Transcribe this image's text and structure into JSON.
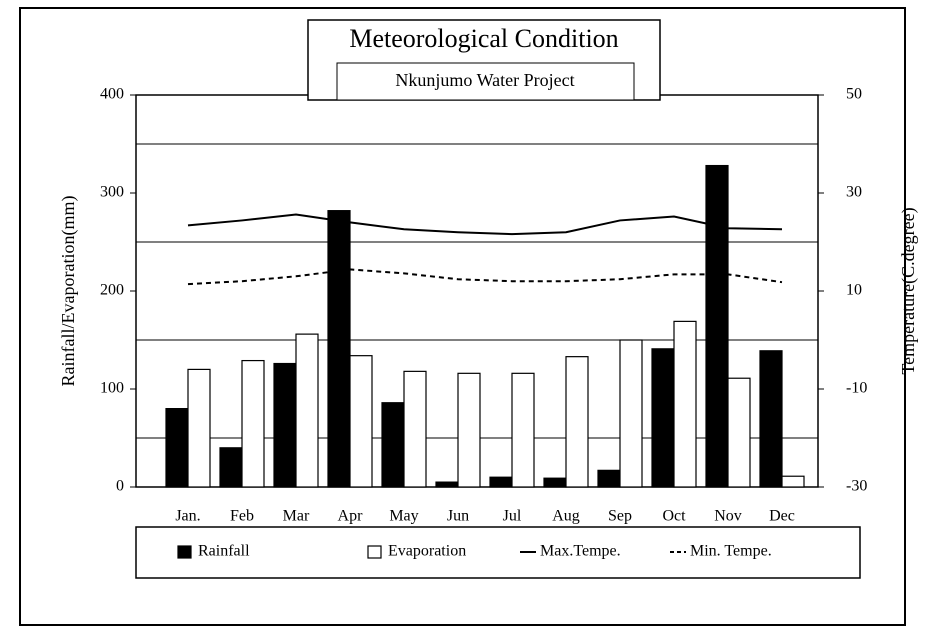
{
  "chart_data": {
    "type": "bar_line",
    "title": "Meteorological Condition",
    "subtitle": "Nkunjumo Water Project",
    "ylabel": "Rainfall/Evaporation(mm)",
    "y2label": "Temperature(C.degree)",
    "categories": [
      "Jan.",
      "Feb",
      "Mar",
      "Apr",
      "May",
      "Jun",
      "Jul",
      "Aug",
      "Sep",
      "Oct",
      "Nov",
      "Dec"
    ],
    "series": [
      {
        "name": "Rainfall",
        "type": "bar",
        "color": "#000000",
        "values": [
          80,
          40,
          126,
          282,
          86,
          5,
          10,
          9,
          17,
          141,
          328,
          139
        ]
      },
      {
        "name": "Evaporation",
        "type": "bar",
        "color": "#ffffff",
        "values": [
          120,
          129,
          156,
          134,
          118,
          116,
          116,
          133,
          150,
          169,
          111,
          11
        ]
      },
      {
        "name": "Max.Tempe.",
        "type": "line",
        "axis": "y2",
        "color": "#000000",
        "dash": "solid",
        "values": [
          23.4,
          24.4,
          25.6,
          24,
          22.6,
          22,
          21.6,
          22,
          24.4,
          25.2,
          22.8,
          22.6
        ]
      },
      {
        "name": "Min. Tempe.",
        "type": "line",
        "axis": "y2",
        "color": "#000000",
        "dash": "dashed",
        "values": [
          11.4,
          12,
          13,
          14.4,
          13.6,
          12.4,
          12,
          12,
          12.4,
          13.4,
          13.4,
          11.8
        ]
      }
    ],
    "ylim": [
      0,
      400
    ],
    "yticks": [
      0,
      100,
      200,
      300,
      400
    ],
    "y2lim": [
      -30,
      50
    ],
    "y2ticks": [
      -30,
      -10,
      10,
      30,
      50
    ],
    "grid_lines": [
      50,
      150,
      250,
      350
    ]
  }
}
